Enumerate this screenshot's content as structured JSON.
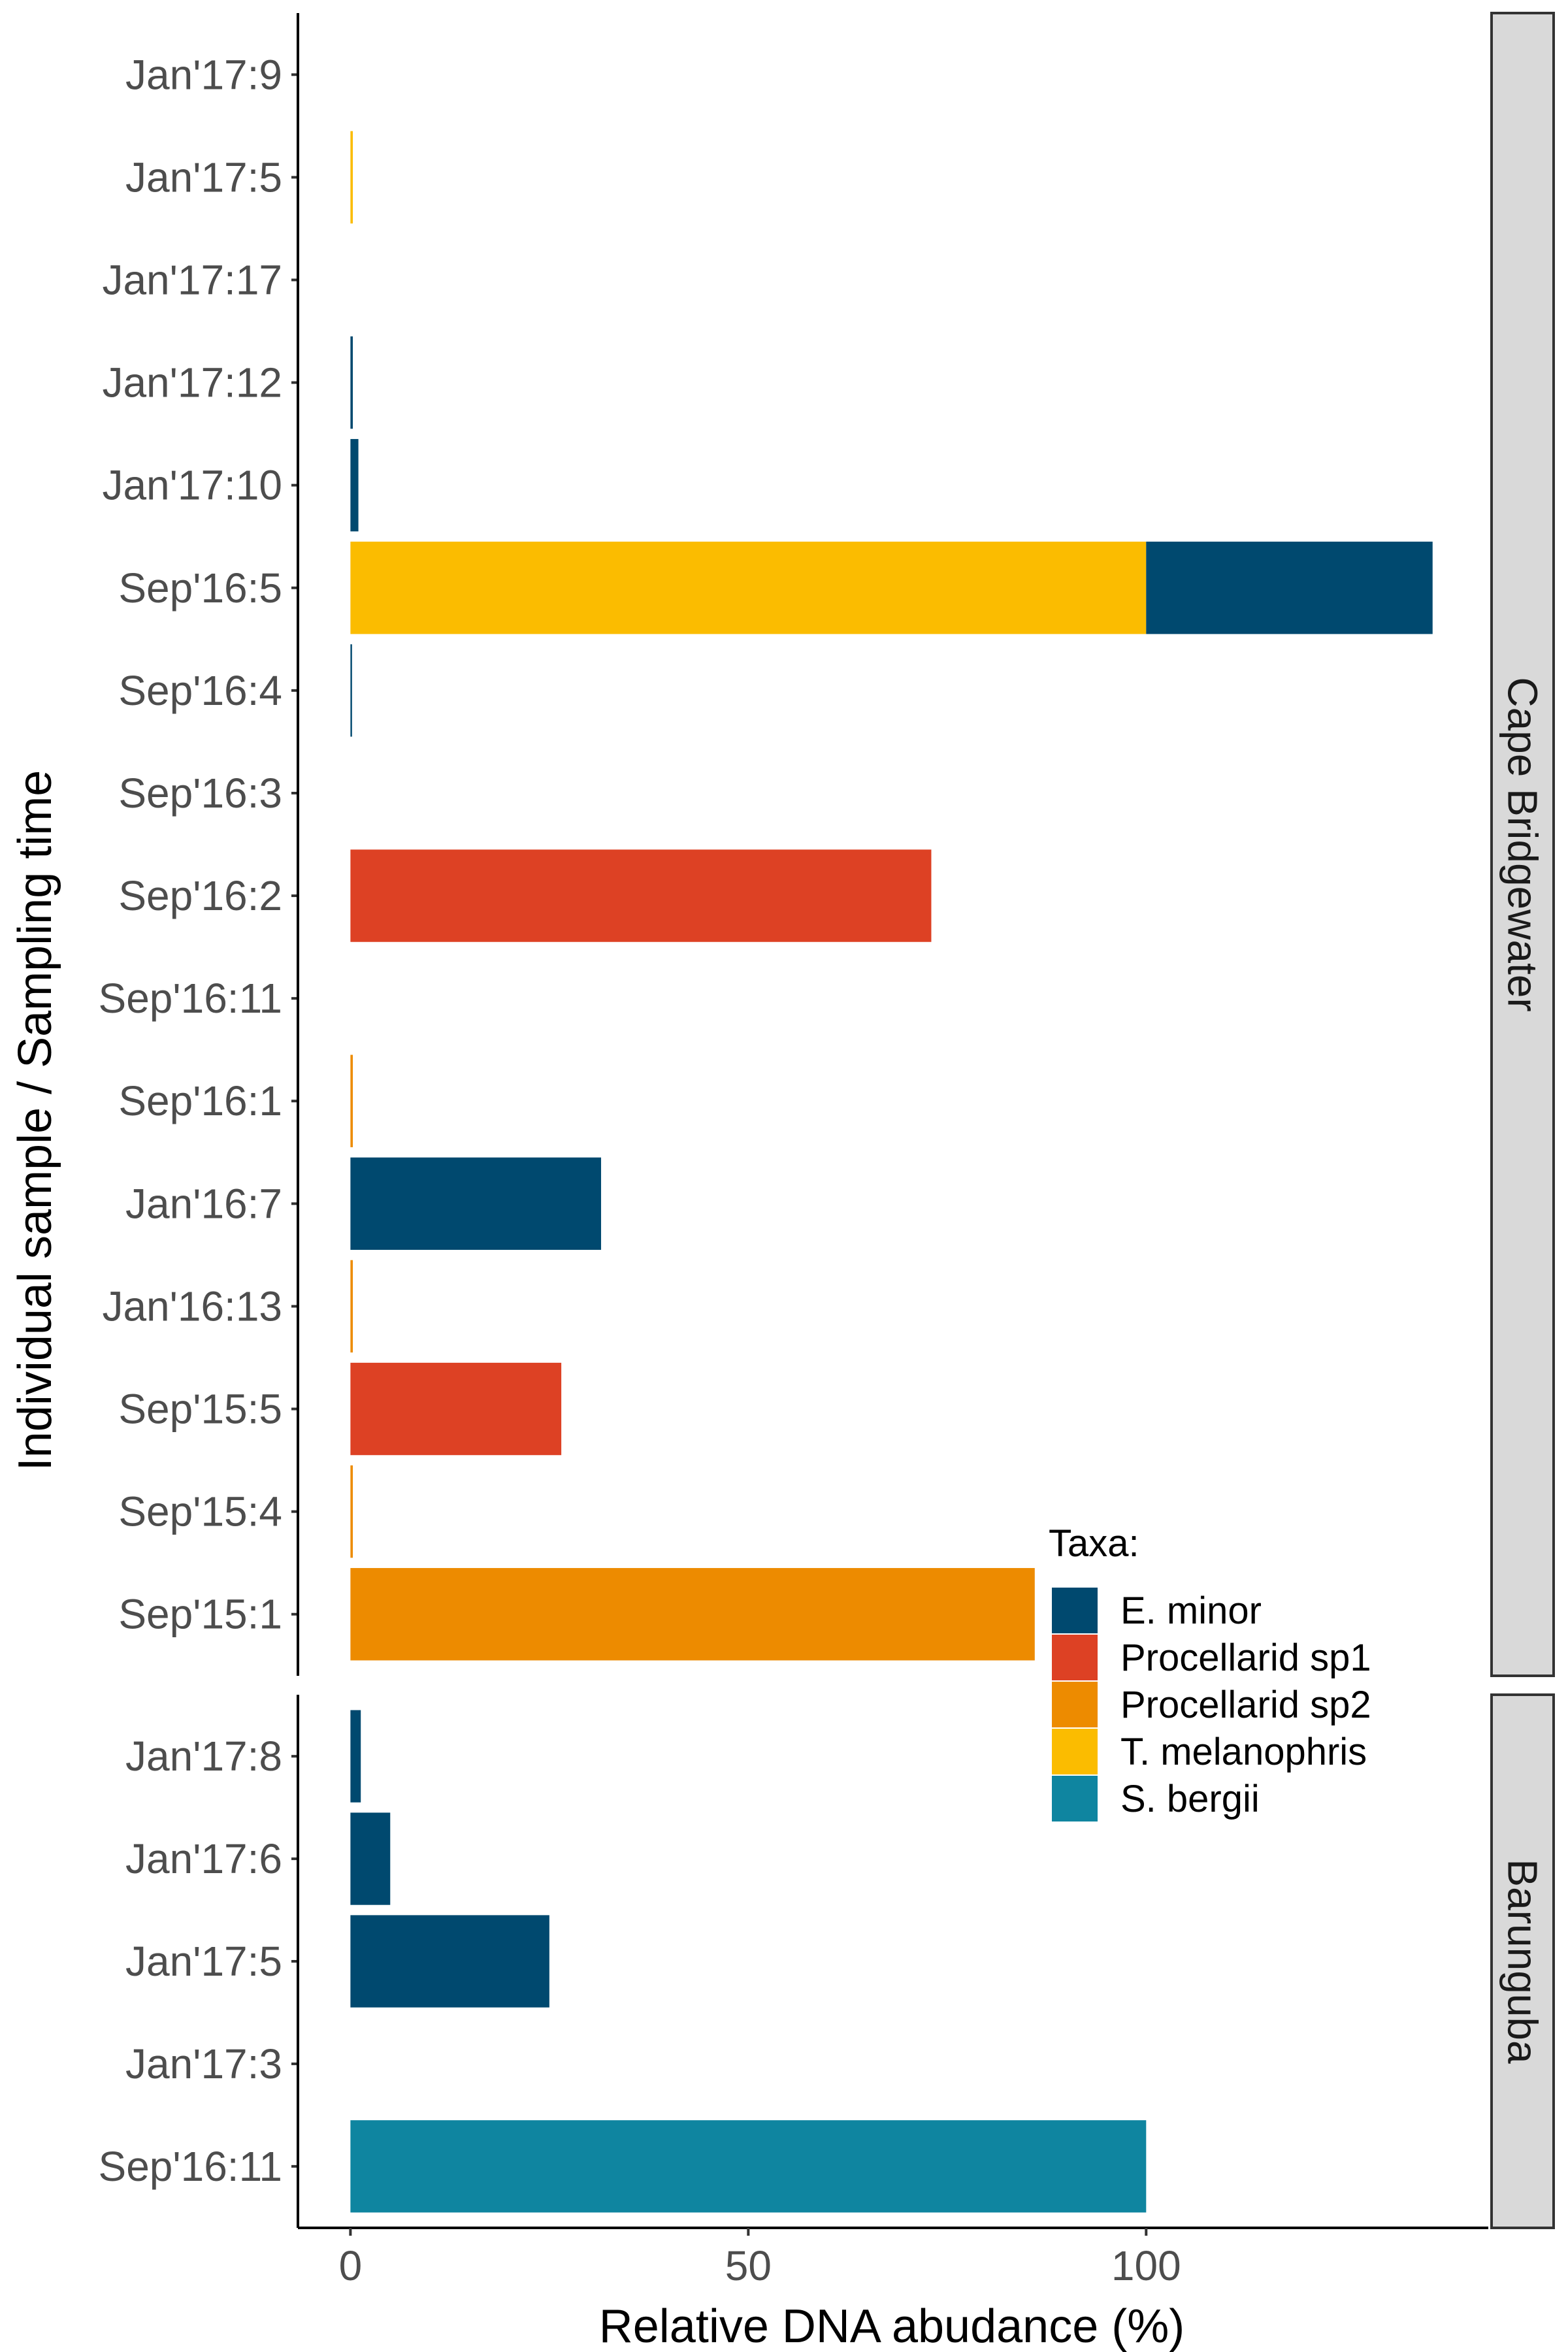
{
  "chart_data": {
    "type": "bar",
    "orientation": "horizontal",
    "stacked": true,
    "xlabel": "Relative DNA abudance (%)",
    "ylabel": "Individual sample / Sampling time",
    "xlim": [
      -6.6,
      143
    ],
    "xticks": [
      0,
      50,
      100
    ],
    "grid": false,
    "legend": {
      "title": "Taxa:",
      "placement": "right-inside",
      "entries": [
        "E. minor",
        "Procellarid sp1",
        "Procellarid sp2",
        "T. melanophris",
        "S. bergii"
      ]
    },
    "colors": {
      "E. minor": "#00496f",
      "Procellarid sp1": "#dd4124",
      "Procellarid sp2": "#ed8b00",
      "T. melanophris": "#fbbc00",
      "S. bergii": "#0f85a0"
    },
    "panels": [
      {
        "name": "Cape Bridgewater",
        "categories": [
          "Jan'17:9",
          "Jan'17:5",
          "Jan'17:17",
          "Jan'17:12",
          "Jan'17:10",
          "Sep'16:5",
          "Sep'16:4",
          "Sep'16:3",
          "Sep'16:2",
          "Sep'16:11",
          "Sep'16:1",
          "Jan'16:7",
          "Jan'16:13",
          "Sep'15:5",
          "Sep'15:4",
          "Sep'15:1"
        ],
        "series": [
          {
            "name": "T. melanophris",
            "values": [
              0,
              0.3,
              0,
              0,
              0,
              100,
              0,
              0,
              0,
              0,
              0,
              0,
              0,
              0,
              0,
              0
            ]
          },
          {
            "name": "Procellarid sp2",
            "values": [
              0,
              0,
              0,
              0,
              0,
              0,
              0,
              0,
              0,
              0,
              0.3,
              0,
              0.3,
              0,
              0.3,
              86
            ]
          },
          {
            "name": "Procellarid sp1",
            "values": [
              0,
              0,
              0,
              0,
              0,
              0,
              0,
              0,
              73,
              0,
              0,
              0,
              0,
              26.5,
              0,
              0
            ]
          },
          {
            "name": "E. minor",
            "values": [
              0,
              0,
              0,
              0.3,
              1,
              36,
              0.2,
              0,
              0,
              0,
              0,
              31.5,
              0,
              0,
              0,
              0
            ]
          },
          {
            "name": "S. bergii",
            "values": [
              0,
              0,
              0,
              0,
              0,
              0,
              0,
              0,
              0,
              0,
              0,
              0,
              0,
              0,
              0,
              0
            ]
          }
        ]
      },
      {
        "name": "Barunguba",
        "categories": [
          "Jan'17:8",
          "Jan'17:6",
          "Jan'17:5",
          "Jan'17:3",
          "Sep'16:11"
        ],
        "series": [
          {
            "name": "T. melanophris",
            "values": [
              0,
              0,
              0,
              0,
              0
            ]
          },
          {
            "name": "Procellarid sp2",
            "values": [
              0,
              0,
              0,
              0,
              0
            ]
          },
          {
            "name": "Procellarid sp1",
            "values": [
              0,
              0,
              0,
              0,
              0
            ]
          },
          {
            "name": "E. minor",
            "values": [
              1.3,
              5,
              25,
              0,
              0
            ]
          },
          {
            "name": "S. bergii",
            "values": [
              0,
              0,
              0,
              0,
              100
            ]
          }
        ]
      }
    ]
  }
}
